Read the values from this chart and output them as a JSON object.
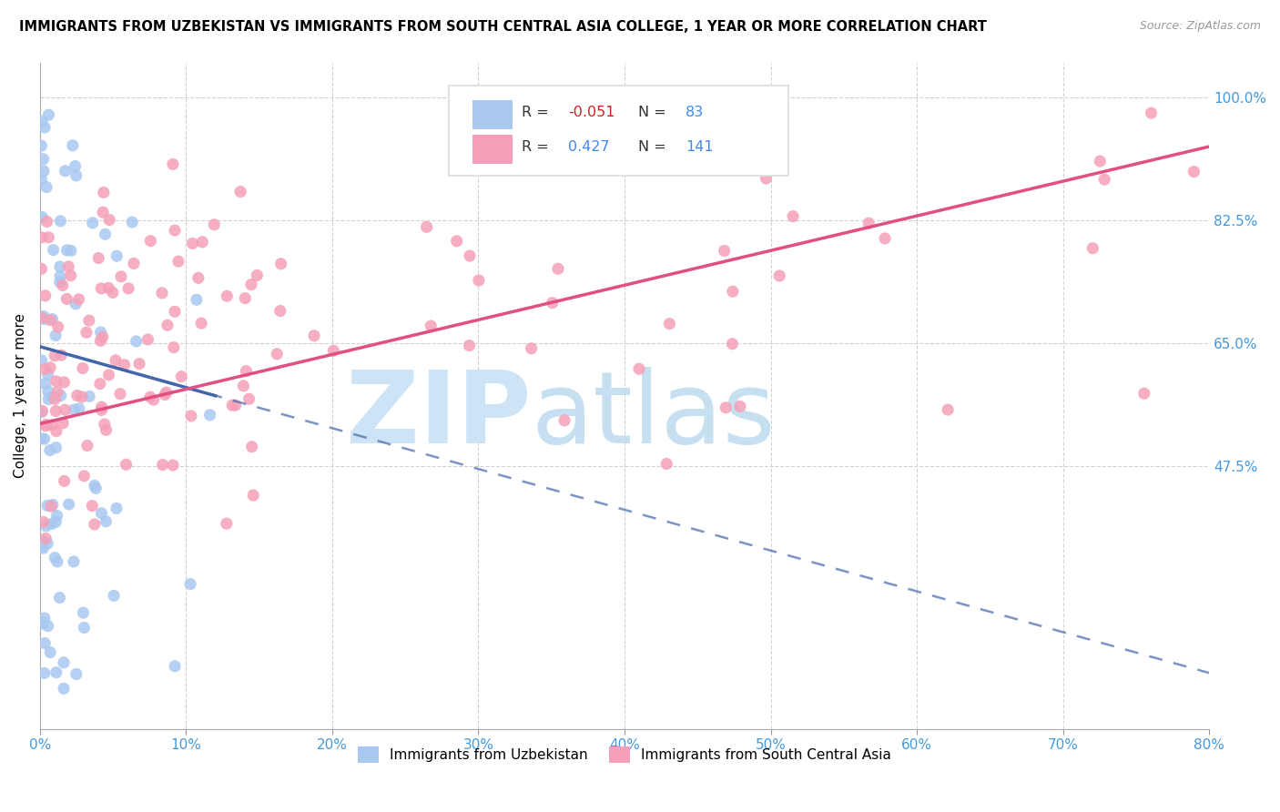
{
  "title": "IMMIGRANTS FROM UZBEKISTAN VS IMMIGRANTS FROM SOUTH CENTRAL ASIA COLLEGE, 1 YEAR OR MORE CORRELATION CHART",
  "source": "Source: ZipAtlas.com",
  "ylabel": "College, 1 year or more",
  "right_yticks": [
    0.475,
    0.65,
    0.825,
    1.0
  ],
  "right_ytick_labels": [
    "47.5%",
    "65.0%",
    "82.5%",
    "100.0%"
  ],
  "color_uzbekistan": "#a8c8f0",
  "color_south_central": "#f5a0b8",
  "trend_uzbekistan_color": "#4466aa",
  "trend_south_central_color": "#e05080",
  "watermark_zip": "ZIP",
  "watermark_atlas": "atlas",
  "watermark_color": "#cce4f5",
  "background_color": "#ffffff",
  "xmin": 0.0,
  "xmax": 0.8,
  "ymin": 0.1,
  "ymax": 1.05,
  "uzb_trend_x0": 0.0,
  "uzb_trend_y0": 0.645,
  "uzb_trend_x1": 0.12,
  "uzb_trend_y1": 0.575,
  "uzb_trend_dash_x0": 0.0,
  "uzb_trend_dash_y0": 0.645,
  "uzb_trend_dash_x1": 0.8,
  "uzb_trend_dash_y1": 0.18,
  "sca_trend_x0": 0.0,
  "sca_trend_y0": 0.535,
  "sca_trend_x1": 0.8,
  "sca_trend_y1": 0.93
}
